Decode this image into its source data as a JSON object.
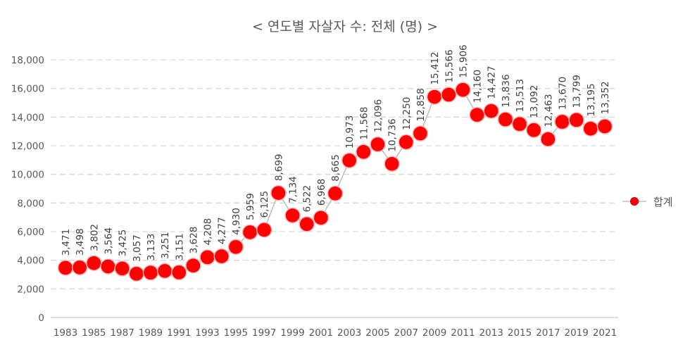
{
  "chart_data": {
    "type": "line",
    "title": "< 연도별 자살자 수: 전체 (명) >",
    "xlabel": "",
    "ylabel": "",
    "ylim": [
      0,
      18000
    ],
    "y_ticks": [
      0,
      2000,
      4000,
      6000,
      8000,
      10000,
      12000,
      14000,
      16000,
      18000
    ],
    "y_tick_labels": [
      "0",
      "2,000",
      "4,000",
      "6,000",
      "8,000",
      "10,000",
      "12,000",
      "14,000",
      "16,000",
      "18,000"
    ],
    "x": [
      1983,
      1984,
      1985,
      1986,
      1987,
      1988,
      1989,
      1990,
      1991,
      1992,
      1993,
      1994,
      1995,
      1996,
      1997,
      1998,
      1999,
      2000,
      2001,
      2002,
      2003,
      2004,
      2005,
      2006,
      2007,
      2008,
      2009,
      2010,
      2011,
      2012,
      2013,
      2014,
      2015,
      2016,
      2017,
      2018,
      2019,
      2020,
      2021
    ],
    "x_tick_labels": [
      "1983",
      "1985",
      "1987",
      "1989",
      "1991",
      "1993",
      "1995",
      "1997",
      "1999",
      "2001",
      "2003",
      "2005",
      "2007",
      "2009",
      "2011",
      "2013",
      "2015",
      "2017",
      "2019",
      "2021"
    ],
    "series": [
      {
        "name": "합계",
        "color": "#ff0000",
        "line_color": "#bfbfbf",
        "values": [
          3471,
          3498,
          3802,
          3564,
          3425,
          3057,
          3133,
          3251,
          3151,
          3628,
          4208,
          4277,
          4930,
          5959,
          6125,
          8699,
          7134,
          6522,
          6968,
          8665,
          10973,
          11568,
          12096,
          10736,
          12250,
          12858,
          15412,
          15566,
          15906,
          14160,
          14427,
          13836,
          13513,
          13092,
          12463,
          13670,
          13799,
          13195,
          13352
        ],
        "labels": [
          "3,471",
          "3,498",
          "3,802",
          "3,564",
          "3,425",
          "3,057",
          "3,133",
          "3,251",
          "3,151",
          "3,628",
          "4,208",
          "4,277",
          "4,930",
          "5,959",
          "6,125",
          "8,699",
          "7,134",
          "6,522",
          "6,968",
          "8,665",
          "10,973",
          "11,568",
          "12,096",
          "10,736",
          "12,250",
          "12,858",
          "15,412",
          "15,566",
          "15,906",
          "14,160",
          "14,427",
          "13,836",
          "13,513",
          "13,092",
          "12,463",
          "13,670",
          "13,799",
          "13,195",
          "13,352"
        ]
      }
    ],
    "grid": true,
    "legend_position": "right"
  }
}
